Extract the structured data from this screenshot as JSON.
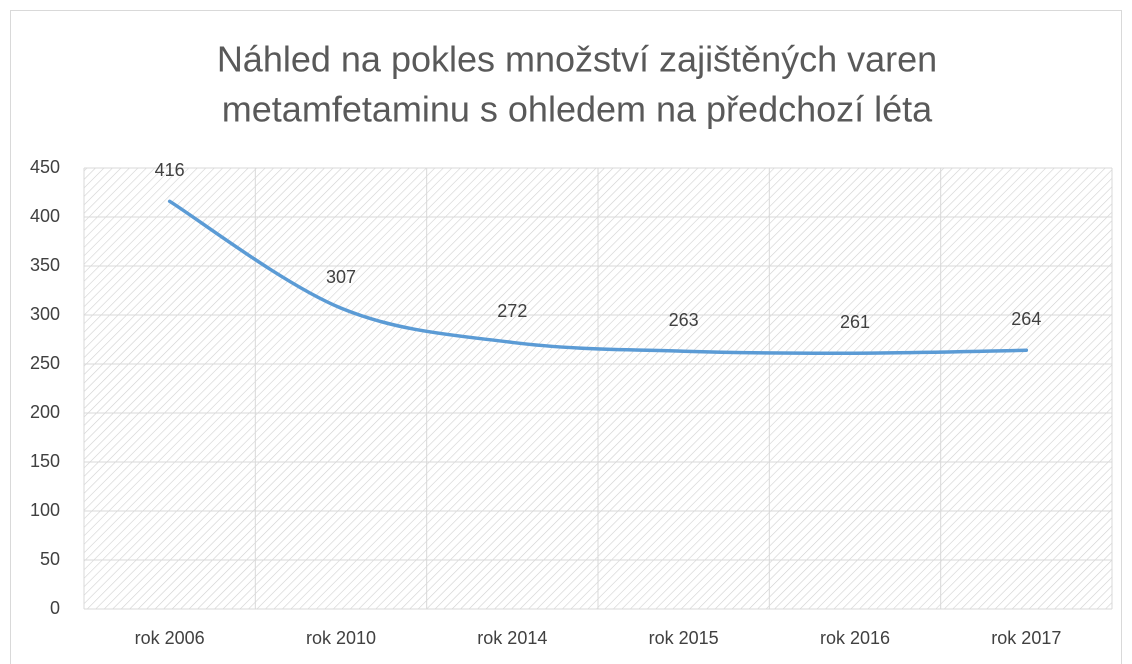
{
  "chart_data": {
    "type": "line",
    "title": [
      "Náhled na pokles množství zajištěných varen",
      "metamfetaminu s ohledem na předchozí léta"
    ],
    "categories": [
      "rok 2006",
      "rok 2010",
      "rok 2014",
      "rok 2015",
      "rok 2016",
      "rok 2017"
    ],
    "values": [
      416,
      307,
      272,
      263,
      261,
      264
    ],
    "color": "#5b9bd5",
    "ylim": [
      0,
      450
    ],
    "yticks": [
      0,
      50,
      100,
      150,
      200,
      250,
      300,
      350,
      400,
      450
    ],
    "grid": true
  }
}
